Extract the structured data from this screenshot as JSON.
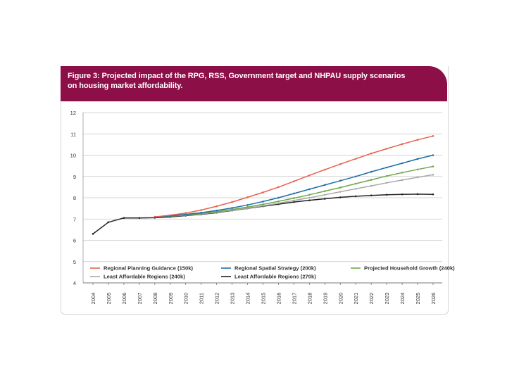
{
  "chart_data": {
    "type": "line",
    "title": "Figure 3: Projected impact of the RPG, RSS, Government target and NHPAU supply scenarios on housing market affordability.",
    "title_lines": [
      "Figure 3: Projected impact of the RPG, RSS, Government target and NHPAU supply scenarios",
      "on housing market affordability."
    ],
    "xlabel": "",
    "ylabel": "",
    "ylim": [
      4,
      12
    ],
    "yticks": [
      "12",
      "11",
      "10",
      "9",
      "8",
      "7",
      "6",
      "5",
      "4"
    ],
    "categories": [
      "2004",
      "2005",
      "2006",
      "2007",
      "2008",
      "2009",
      "2010",
      "2011",
      "2012",
      "2013",
      "2014",
      "2015",
      "2016",
      "2017",
      "2018",
      "2019",
      "2020",
      "2021",
      "2022",
      "2023",
      "2024",
      "2025",
      "2026"
    ],
    "grid": true,
    "legend_position": "bottom",
    "series": [
      {
        "name": "Regional Planning Guidance (150k)",
        "color": "#e8604c",
        "values": [
          null,
          null,
          null,
          null,
          7.1,
          7.18,
          7.28,
          7.42,
          7.6,
          7.8,
          8.02,
          8.25,
          8.5,
          8.77,
          9.05,
          9.32,
          9.58,
          9.83,
          10.08,
          10.3,
          10.52,
          10.72,
          10.9
        ]
      },
      {
        "name": "Regional Spatial Strategy (200k)",
        "color": "#1e6ea8",
        "values": [
          null,
          null,
          null,
          null,
          7.1,
          7.15,
          7.22,
          7.3,
          7.4,
          7.52,
          7.66,
          7.82,
          8.0,
          8.2,
          8.4,
          8.6,
          8.8,
          9.0,
          9.22,
          9.42,
          9.62,
          9.82,
          10.0
        ]
      },
      {
        "name": "Projected Household Growth (240k)",
        "color": "#6fa84a",
        "values": [
          null,
          null,
          null,
          null,
          7.1,
          7.14,
          7.19,
          7.26,
          7.35,
          7.45,
          7.56,
          7.69,
          7.83,
          7.98,
          8.14,
          8.31,
          8.48,
          8.66,
          8.84,
          9.02,
          9.18,
          9.33,
          9.47
        ]
      },
      {
        "name": "Least Affordable Regions (240k)",
        "color": "#a9a9a9",
        "values": [
          null,
          null,
          null,
          null,
          7.1,
          7.13,
          7.18,
          7.24,
          7.32,
          7.41,
          7.51,
          7.62,
          7.74,
          7.87,
          8.0,
          8.14,
          8.28,
          8.42,
          8.56,
          8.7,
          8.83,
          8.96,
          9.08
        ]
      },
      {
        "name": "Least Affordable Regions (270k)",
        "color": "#222222",
        "values": [
          6.3,
          6.85,
          7.05,
          7.05,
          7.06,
          7.1,
          7.16,
          7.22,
          7.3,
          7.4,
          7.5,
          7.6,
          7.7,
          7.8,
          7.88,
          7.95,
          8.02,
          8.07,
          8.11,
          8.14,
          8.16,
          8.17,
          8.16
        ]
      }
    ]
  }
}
